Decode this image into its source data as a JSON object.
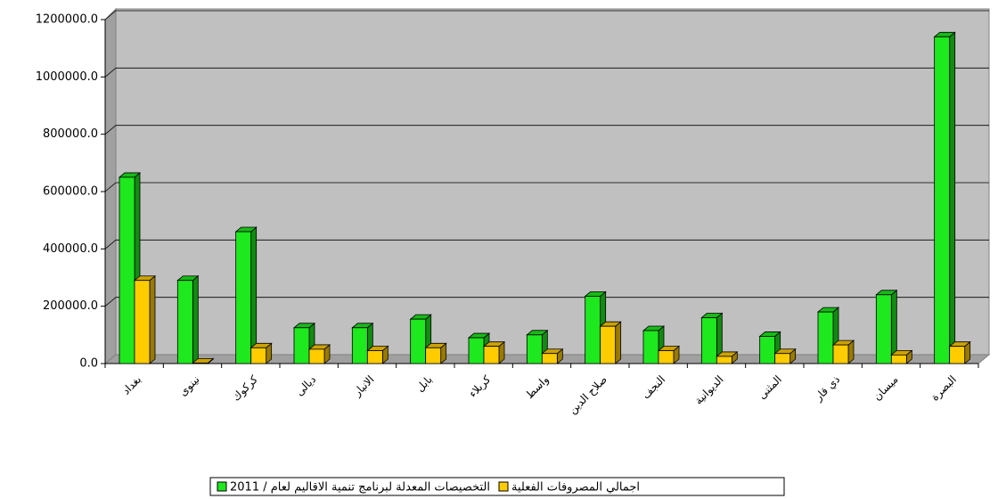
{
  "chart_data": {
    "type": "bar3d",
    "categories": [
      "بغداد",
      "نينوى",
      "كركوك",
      "ديالى",
      "الانبار",
      "بابل",
      "كربلاء",
      "واسط",
      "صلاح الدين",
      "النجف",
      "الديوانية",
      "المثنى",
      "ذي قار",
      "ميسان",
      "البصرة"
    ],
    "series": [
      {
        "name": "التخصيصات المعدلة لبرنامج تنمية الاقاليم لعام / 2011",
        "color": "#1ee81e",
        "values": [
          650000,
          290000,
          460000,
          125000,
          125000,
          155000,
          90000,
          100000,
          235000,
          115000,
          160000,
          95000,
          180000,
          240000,
          1140000
        ]
      },
      {
        "name": "اجمالي المصروفات الفعلية",
        "color": "#ffcc00",
        "values": [
          290000,
          2000,
          55000,
          50000,
          45000,
          55000,
          60000,
          35000,
          130000,
          45000,
          25000,
          35000,
          65000,
          30000,
          60000
        ]
      }
    ],
    "ylim": [
      0,
      1200000
    ],
    "yticks": [
      {
        "value": 0,
        "label": "0.0"
      },
      {
        "value": 200000,
        "label": "200000.0"
      },
      {
        "value": 400000,
        "label": "400000.0"
      },
      {
        "value": 600000,
        "label": "600000.0"
      },
      {
        "value": 800000,
        "label": "800000.0"
      },
      {
        "value": 1000000,
        "label": "1000000.0"
      },
      {
        "value": 1200000,
        "label": "1200000.0"
      }
    ],
    "grid": true
  }
}
